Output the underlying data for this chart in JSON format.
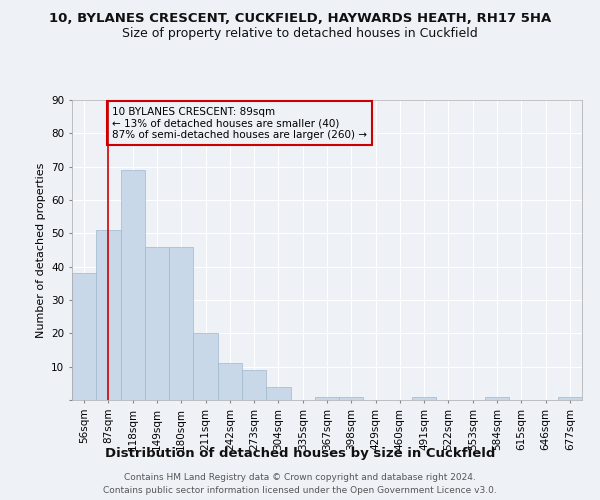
{
  "title1": "10, BYLANES CRESCENT, CUCKFIELD, HAYWARDS HEATH, RH17 5HA",
  "title2": "Size of property relative to detached houses in Cuckfield",
  "xlabel": "Distribution of detached houses by size in Cuckfield",
  "ylabel": "Number of detached properties",
  "footer": "Contains HM Land Registry data © Crown copyright and database right 2024.\nContains public sector information licensed under the Open Government Licence v3.0.",
  "bar_labels": [
    "56sqm",
    "87sqm",
    "118sqm",
    "149sqm",
    "180sqm",
    "211sqm",
    "242sqm",
    "273sqm",
    "304sqm",
    "335sqm",
    "367sqm",
    "398sqm",
    "429sqm",
    "460sqm",
    "491sqm",
    "522sqm",
    "553sqm",
    "584sqm",
    "615sqm",
    "646sqm",
    "677sqm"
  ],
  "bar_values": [
    38,
    51,
    69,
    46,
    46,
    20,
    11,
    9,
    4,
    0,
    1,
    1,
    0,
    0,
    1,
    0,
    0,
    1,
    0,
    0,
    1
  ],
  "bar_color": "#c8d8e8",
  "bar_edge_color": "#a0b8cc",
  "ylim": [
    0,
    90
  ],
  "yticks": [
    0,
    10,
    20,
    30,
    40,
    50,
    60,
    70,
    80,
    90
  ],
  "property_line_x": 1,
  "property_line_color": "#cc0000",
  "annotation_box_text": "10 BYLANES CRESCENT: 89sqm\n← 13% of detached houses are smaller (40)\n87% of semi-detached houses are larger (260) →",
  "annotation_box_color": "#cc0000",
  "background_color": "#eef2f7",
  "grid_color": "#ffffff",
  "title1_fontsize": 9.5,
  "title2_fontsize": 9,
  "xlabel_fontsize": 9.5,
  "ylabel_fontsize": 8,
  "tick_fontsize": 7.5,
  "annotation_fontsize": 7.5,
  "footer_fontsize": 6.5
}
